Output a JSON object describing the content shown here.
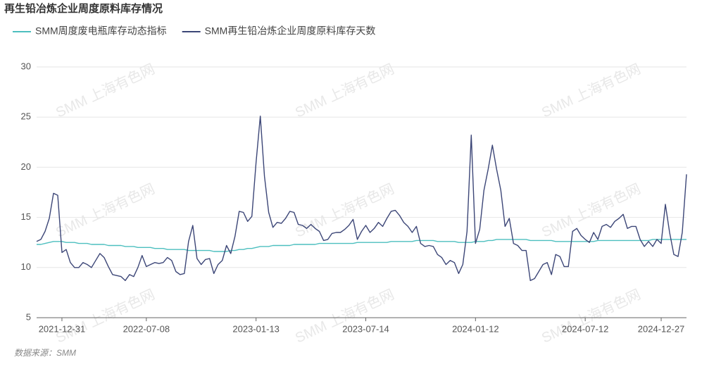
{
  "chart_data": {
    "type": "line",
    "title": "再生铅冶炼企业周度原料库存情况",
    "source": "数据来源：SMM",
    "watermark": "SMM 上海有色网",
    "ylim": [
      5,
      30
    ],
    "yticks": [
      5,
      10,
      15,
      20,
      25,
      30
    ],
    "grid": true,
    "categories": [
      null,
      null,
      null,
      null,
      null,
      null,
      "2021-12-31",
      null,
      null,
      null,
      null,
      null,
      null,
      null,
      null,
      null,
      null,
      null,
      null,
      null,
      null,
      null,
      null,
      null,
      null,
      null,
      "2022-07-08",
      null,
      null,
      null,
      null,
      null,
      null,
      null,
      null,
      null,
      null,
      null,
      null,
      null,
      null,
      null,
      null,
      null,
      null,
      null,
      null,
      null,
      null,
      null,
      null,
      null,
      "2023-01-13",
      null,
      null,
      null,
      null,
      null,
      null,
      null,
      null,
      null,
      null,
      null,
      null,
      null,
      null,
      null,
      null,
      null,
      null,
      null,
      null,
      null,
      null,
      null,
      null,
      null,
      "2023-07-14",
      null,
      null,
      null,
      null,
      null,
      null,
      null,
      null,
      null,
      null,
      null,
      null,
      null,
      null,
      null,
      null,
      null,
      null,
      null,
      null,
      null,
      null,
      null,
      null,
      null,
      "2024-01-12",
      null,
      null,
      null,
      null,
      null,
      null,
      null,
      null,
      null,
      null,
      null,
      null,
      null,
      null,
      null,
      null,
      null,
      null,
      null,
      null,
      null,
      null,
      null,
      null,
      null,
      "2024-07-12",
      null,
      null,
      null,
      null,
      null,
      null,
      null,
      null,
      null,
      null,
      null,
      null,
      null,
      null,
      null,
      null,
      null,
      "2024-12-27",
      null,
      null,
      null,
      null,
      null,
      null
    ],
    "series": [
      {
        "name": "SMM周度废电瓶库存动态指标",
        "color": "#4dbfbf",
        "values": [
          12.3,
          12.3,
          12.4,
          12.5,
          12.6,
          12.6,
          12.6,
          12.5,
          12.5,
          12.5,
          12.4,
          12.4,
          12.4,
          12.3,
          12.3,
          12.3,
          12.3,
          12.2,
          12.2,
          12.2,
          12.2,
          12.1,
          12.1,
          12.1,
          12.0,
          12.0,
          12.0,
          12.0,
          11.9,
          11.9,
          11.9,
          11.8,
          11.8,
          11.8,
          11.8,
          11.8,
          11.7,
          11.7,
          11.7,
          11.7,
          11.7,
          11.7,
          11.6,
          11.6,
          11.6,
          11.6,
          11.7,
          11.7,
          11.8,
          11.8,
          11.9,
          11.9,
          12.0,
          12.1,
          12.1,
          12.1,
          12.2,
          12.2,
          12.2,
          12.2,
          12.2,
          12.3,
          12.3,
          12.3,
          12.3,
          12.3,
          12.3,
          12.4,
          12.4,
          12.4,
          12.4,
          12.4,
          12.4,
          12.4,
          12.4,
          12.4,
          12.5,
          12.5,
          12.5,
          12.5,
          12.5,
          12.5,
          12.5,
          12.5,
          12.6,
          12.6,
          12.6,
          12.6,
          12.6,
          12.6,
          12.7,
          12.7,
          12.7,
          12.7,
          12.7,
          12.6,
          12.6,
          12.6,
          12.6,
          12.6,
          12.5,
          12.5,
          12.5,
          12.5,
          12.6,
          12.6,
          12.6,
          12.7,
          12.7,
          12.8,
          12.8,
          12.8,
          12.8,
          12.8,
          12.8,
          12.8,
          12.8,
          12.7,
          12.7,
          12.7,
          12.7,
          12.7,
          12.7,
          12.6,
          12.6,
          12.6,
          12.6,
          12.6,
          12.6,
          12.6,
          12.6,
          12.6,
          12.6,
          12.7,
          12.7,
          12.7,
          12.7,
          12.7,
          12.7,
          12.7,
          12.7,
          12.7,
          12.7,
          12.7,
          12.7,
          12.7,
          12.8,
          12.8,
          12.8,
          12.8,
          12.8,
          12.8,
          12.8,
          12.8,
          12.8
        ]
      },
      {
        "name": "SMM再生铅冶炼企业周度原料库存天数",
        "color": "#3c4677",
        "values": [
          12.6,
          12.8,
          13.6,
          14.9,
          17.4,
          17.2,
          11.5,
          11.8,
          10.5,
          10.0,
          10.0,
          10.5,
          10.3,
          10.0,
          10.7,
          11.4,
          11.0,
          10.1,
          9.3,
          9.2,
          9.1,
          8.7,
          9.3,
          9.1,
          10.0,
          11.2,
          10.1,
          10.3,
          10.5,
          10.4,
          10.5,
          11.0,
          10.7,
          9.6,
          9.3,
          9.4,
          12.6,
          14.2,
          10.9,
          10.3,
          10.8,
          10.9,
          9.4,
          10.3,
          10.7,
          12.2,
          11.4,
          13.1,
          15.6,
          15.5,
          14.6,
          15.1,
          20.5,
          25.1,
          19.1,
          15.5,
          14.0,
          14.5,
          14.4,
          14.9,
          15.6,
          15.5,
          14.3,
          14.2,
          13.9,
          14.3,
          13.9,
          13.6,
          12.7,
          12.8,
          13.4,
          13.5,
          13.5,
          13.8,
          14.2,
          14.8,
          12.8,
          13.6,
          14.2,
          13.5,
          13.9,
          14.5,
          14.1,
          14.9,
          15.6,
          15.7,
          15.2,
          14.5,
          14.1,
          13.5,
          14.1,
          12.4,
          12.1,
          12.2,
          12.1,
          11.3,
          11.0,
          10.3,
          10.7,
          10.5,
          9.4,
          10.3,
          13.6,
          23.2,
          12.4,
          13.8,
          17.7,
          19.8,
          22.2,
          19.8,
          17.7,
          14.1,
          14.9,
          12.4,
          12.2,
          11.7,
          11.7,
          8.7,
          8.9,
          9.6,
          10.3,
          10.5,
          9.3,
          11.3,
          11.1,
          10.1,
          10.1,
          13.6,
          13.9,
          13.2,
          12.8,
          12.5,
          13.5,
          12.8,
          14.1,
          14.3,
          14.0,
          14.6,
          14.9,
          15.3,
          13.9,
          14.1,
          14.1,
          12.8,
          12.1,
          12.6,
          12.1,
          12.8,
          12.4,
          16.3,
          13.5,
          11.3,
          11.1,
          13.5,
          19.3
        ]
      }
    ]
  }
}
